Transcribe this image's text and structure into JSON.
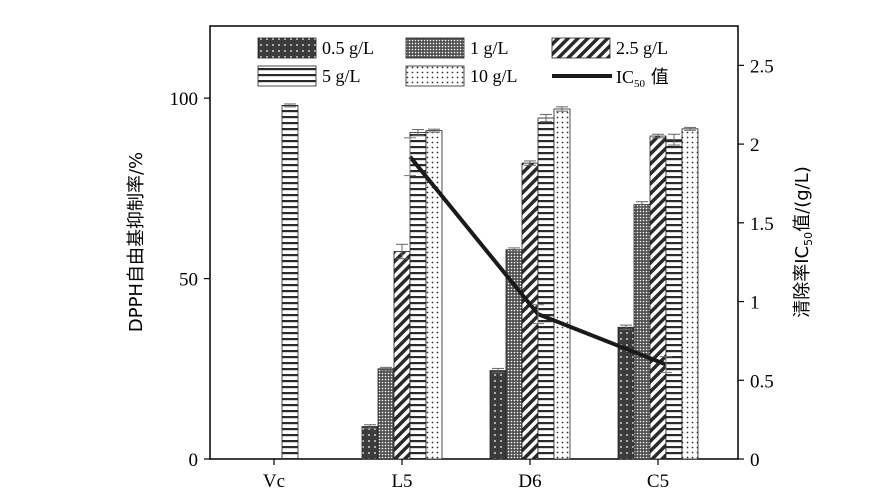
{
  "chart_data": {
    "type": "bar",
    "categories": [
      "Vc",
      "L5",
      "D6",
      "C5"
    ],
    "series": [
      {
        "name": "0.5 g/L",
        "values": [
          null,
          9,
          24.5,
          36.5
        ],
        "errors": [
          null,
          0.5,
          0.6,
          0.6
        ],
        "fill": "dots-dark"
      },
      {
        "name": "1 g/L",
        "values": [
          null,
          25,
          58,
          70.5
        ],
        "errors": [
          null,
          0.4,
          0.5,
          0.8
        ],
        "fill": "dots-dense"
      },
      {
        "name": "2.5 g/L",
        "values": [
          null,
          57.5,
          82,
          89.5
        ],
        "errors": [
          null,
          2,
          0.6,
          0.5
        ],
        "fill": "diagonal"
      },
      {
        "name": "5 g/L",
        "values": [
          98,
          90.5,
          94.5,
          88.5
        ],
        "errors": [
          0.4,
          0.8,
          1,
          1.5
        ],
        "fill": "horizontal"
      },
      {
        "name": "10 g/L",
        "values": [
          null,
          91,
          97,
          91.5
        ],
        "errors": [
          null,
          0.4,
          0.6,
          0.4
        ],
        "fill": "dots-light"
      }
    ],
    "ic50": {
      "name": "IC₅₀ 值",
      "categories": [
        "L5",
        "D6",
        "C5"
      ],
      "values": [
        1.92,
        0.92,
        0.6
      ]
    },
    "ylabel_left": "DPPH自由基抑制率/%",
    "ylabel_right": "清除率IC50值/(g/L)",
    "ylim_left": [
      0,
      120
    ],
    "ylim_right": [
      0,
      2.75
    ],
    "yticks_left": [
      "0",
      "50",
      "100"
    ],
    "yticks_right": [
      "0",
      "0.5",
      "1",
      "1.5",
      "2",
      "2.5"
    ],
    "legend_position": "top",
    "grid": false,
    "colors": {
      "bar_dark": "#3c3c3c",
      "line": "#1a1a1a"
    }
  }
}
